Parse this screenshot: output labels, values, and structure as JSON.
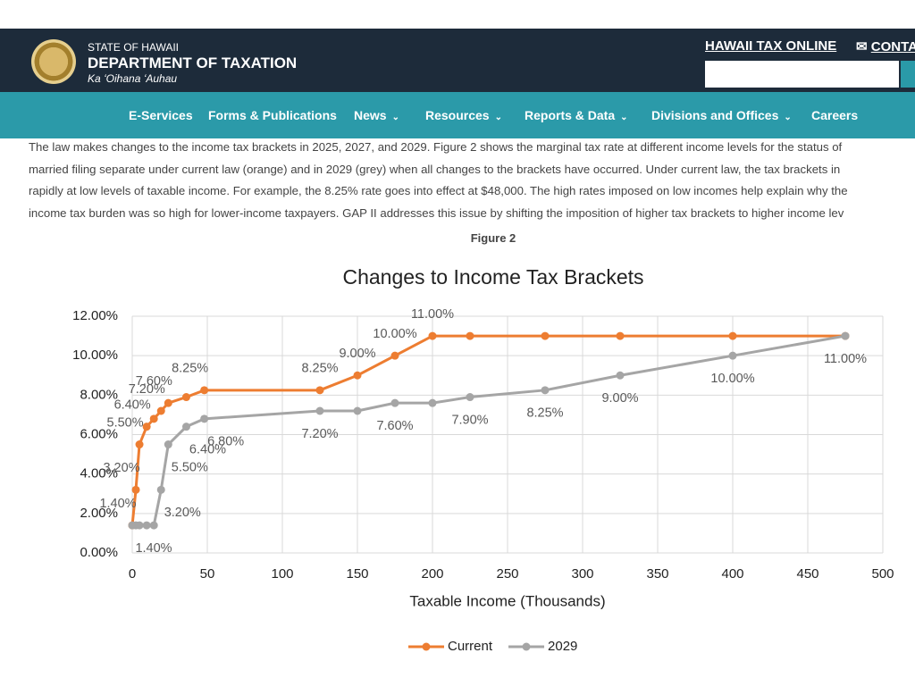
{
  "header": {
    "state": "STATE OF HAWAII",
    "department": "DEPARTMENT OF TAXATION",
    "motto": "Ka ʻOihana ʻAuhau",
    "links": [
      "HAWAII TAX ONLINE",
      "CONTACT"
    ]
  },
  "nav": [
    "E-Services",
    "Forms & Publications",
    "News",
    "Resources",
    "Reports & Data",
    "Divisions and Offices",
    "Careers"
  ],
  "article": {
    "paragraph_lines": [
      "The law makes changes to the income tax brackets in 2025, 2027, and 2029. Figure 2 shows the marginal tax rate at different income levels for the status of",
      "married filing separate under current law (orange) and in 2029 (grey) when all changes to the brackets have occurred. Under current law, the tax brackets in",
      "rapidly at low levels of taxable income. For example, the 8.25% rate goes into effect at $48,000. The high rates imposed on low incomes help explain why the",
      "income tax burden was so high for lower-income taxpayers. GAP II addresses this issue by shifting the imposition of higher tax brackets to higher income lev"
    ],
    "figure_caption": "Figure 2"
  },
  "chart_data": {
    "type": "line",
    "title": "Changes to Income Tax Brackets",
    "x_label": "Taxable Income (Thousands)",
    "x": [
      0,
      2.4,
      4.8,
      9.6,
      14.4,
      19.2,
      24,
      36,
      48,
      125,
      150,
      175,
      200,
      225,
      275,
      325,
      400,
      475
    ],
    "xlim": [
      0,
      500
    ],
    "xticks": [
      0,
      50,
      100,
      150,
      200,
      250,
      300,
      350,
      400,
      450,
      500
    ],
    "ylim": [
      0,
      12
    ],
    "yticks": [
      {
        "value": 0,
        "label": "0.00%"
      },
      {
        "value": 2,
        "label": "2.00%"
      },
      {
        "value": 4,
        "label": "4.00%"
      },
      {
        "value": 6,
        "label": "6.00%"
      },
      {
        "value": 8,
        "label": "8.00%"
      },
      {
        "value": 10,
        "label": "10.00%"
      },
      {
        "value": 12,
        "label": "12.00%"
      }
    ],
    "grid": true,
    "legend": "bottom",
    "series": [
      {
        "name": "Current",
        "color": "#ed7d31",
        "values": [
          1.4,
          3.2,
          5.5,
          6.4,
          6.8,
          7.2,
          7.6,
          7.9,
          8.25,
          8.25,
          9,
          10,
          11,
          11,
          11,
          11,
          11,
          11
        ],
        "value_labels": [
          "1.40%",
          "3.20%",
          "5.50%",
          "6.40%",
          null,
          "7.20%",
          "7.60%",
          null,
          "8.25%",
          "8.25%",
          "9.00%",
          "10.00%",
          "11.00%",
          null,
          null,
          null,
          null,
          null
        ]
      },
      {
        "name": "2029",
        "color": "#a5a5a5",
        "values": [
          1.4,
          1.4,
          1.4,
          1.4,
          1.4,
          3.2,
          5.5,
          6.4,
          6.8,
          7.2,
          7.2,
          7.6,
          7.6,
          7.9,
          8.25,
          9,
          10,
          11
        ],
        "value_labels": [
          "1.40%",
          null,
          null,
          null,
          null,
          "3.20%",
          "5.50%",
          "6.40%",
          "6.80%",
          "7.20%",
          null,
          "7.60%",
          null,
          "7.90%",
          "8.25%",
          "9.00%",
          "10.00%",
          "11.00%"
        ]
      }
    ]
  }
}
